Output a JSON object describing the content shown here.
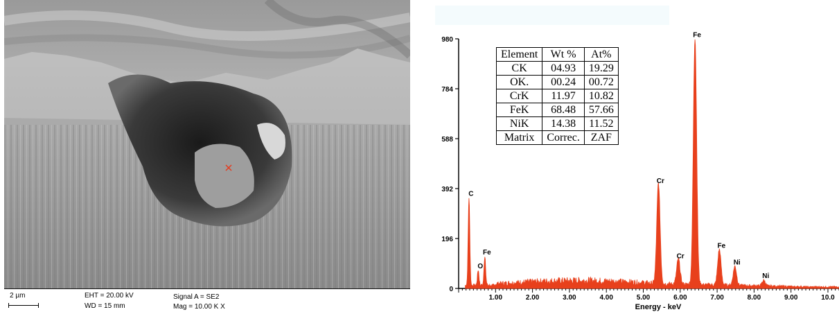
{
  "sem": {
    "scale": "2 µm",
    "eht": "EHT = 20.00 kV",
    "wd": "WD =  15 mm",
    "signal": "Signal A = SE2",
    "mag": "Mag =  10.00 K X"
  },
  "table": {
    "headers": [
      "Element",
      "Wt %",
      "At%"
    ],
    "rows": [
      [
        "CK",
        "04.93",
        "19.29"
      ],
      [
        "OK.",
        "00.24",
        "00.72"
      ],
      [
        "CrK",
        "11.97",
        "10.82"
      ],
      [
        "FeK",
        "68.48",
        "57.66"
      ],
      [
        "NiK",
        "14.38",
        "11.52"
      ],
      [
        "Matrix",
        "Correc.",
        "ZAF"
      ]
    ]
  },
  "chart_data": {
    "type": "line",
    "xlabel": "Energy - keV",
    "ylabel": "",
    "xlim": [
      0,
      10.3
    ],
    "ylim": [
      0,
      980
    ],
    "x_ticks": [
      "1.00",
      "2.00",
      "3.00",
      "4.00",
      "5.00",
      "6.00",
      "7.00",
      "8.00",
      "9.00",
      "10.0"
    ],
    "y_ticks": [
      "0",
      "196",
      "392",
      "588",
      "784",
      "980"
    ],
    "series_color": "#e8401c",
    "peaks": [
      {
        "label": "C",
        "energy": 0.28,
        "counts": 345
      },
      {
        "label": "O",
        "energy": 0.53,
        "counts": 60
      },
      {
        "label": "Fe",
        "energy": 0.71,
        "counts": 115
      },
      {
        "label": "Cr",
        "energy": 5.41,
        "counts": 395
      },
      {
        "label": "Cr",
        "energy": 5.95,
        "counts": 100
      },
      {
        "label": "Fe",
        "energy": 6.4,
        "counts": 968
      },
      {
        "label": "Fe",
        "energy": 7.06,
        "counts": 140
      },
      {
        "label": "Ni",
        "energy": 7.48,
        "counts": 75
      },
      {
        "label": "Ni",
        "energy": 8.26,
        "counts": 22
      }
    ],
    "peak_label_texts": [
      "C",
      "O",
      "Fe",
      "Cr",
      "Cr",
      "Fe",
      "Fe",
      "Ni",
      "Ni"
    ],
    "background_counts": 18
  }
}
